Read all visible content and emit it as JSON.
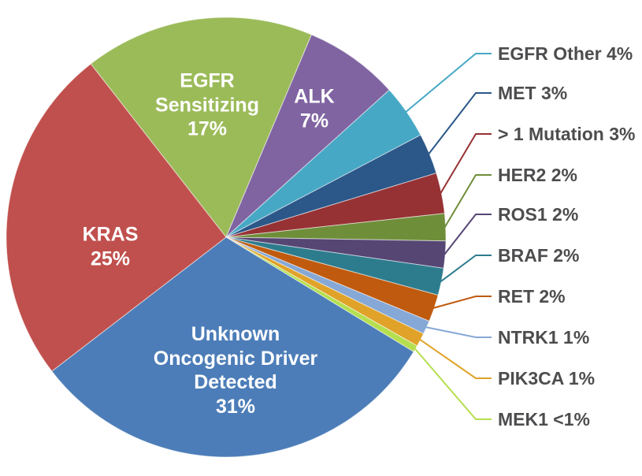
{
  "figure": {
    "background": "#ffffff",
    "callout_text_color": "#4d4d4f",
    "inner_text_color": "#ffffff"
  },
  "chart_data": {
    "type": "pie",
    "title": "",
    "units": "%",
    "direction": "clockwise",
    "start_angle_deg": -38,
    "legend_position": "right-callouts",
    "slices": [
      {
        "id": "egfr-sensitizing",
        "label": "EGFR Sensitizing",
        "value": 17,
        "value_display": "17%",
        "color": "#9bbb59",
        "inner_label": "EGFR\nSensitizing\n17%"
      },
      {
        "id": "alk",
        "label": "ALK",
        "value": 7,
        "value_display": "7%",
        "color": "#8064a2",
        "inner_label": "ALK\n7%"
      },
      {
        "id": "egfr-other",
        "label": "EGFR Other",
        "value": 4,
        "value_display": "4%",
        "color": "#47a8c5",
        "callout": "EGFR Other 4%"
      },
      {
        "id": "met",
        "label": "MET",
        "value": 3,
        "value_display": "3%",
        "color": "#2b5789",
        "callout": "MET 3%"
      },
      {
        "id": "gt1-mutation",
        "label": "> 1 Mutation",
        "value": 3,
        "value_display": "3%",
        "color": "#963234",
        "callout": "> 1 Mutation 3%"
      },
      {
        "id": "her2",
        "label": "HER2",
        "value": 2,
        "value_display": "2%",
        "color": "#6f8e3a",
        "callout": "HER2 2%"
      },
      {
        "id": "ros1",
        "label": "ROS1",
        "value": 2,
        "value_display": "2%",
        "color": "#564674",
        "callout": "ROS1 2%"
      },
      {
        "id": "braf",
        "label": "BRAF",
        "value": 2,
        "value_display": "2%",
        "color": "#2d7c8e",
        "callout": "BRAF 2%"
      },
      {
        "id": "ret",
        "label": "RET",
        "value": 2,
        "value_display": "2%",
        "color": "#bf5a0e",
        "callout": "RET 2%"
      },
      {
        "id": "ntrk1",
        "label": "NTRK1",
        "value": 1,
        "value_display": "1%",
        "color": "#86a8d6",
        "callout": "NTRK1 1%"
      },
      {
        "id": "pik3ca",
        "label": "PIK3CA",
        "value": 1,
        "value_display": "1%",
        "color": "#e0a228",
        "callout": "PIK3CA 1%"
      },
      {
        "id": "mek1",
        "label": "MEK1",
        "value": 0.5,
        "value_display": "<1%",
        "color": "#b5df4e",
        "callout": "MEK1 <1%"
      },
      {
        "id": "unknown-oncogenic-driver",
        "label": "Unknown Oncogenic Driver Detected",
        "value": 31,
        "value_display": "31%",
        "color": "#4c7db8",
        "inner_label": "Unknown\nOncogenic Driver\nDetected\n31%"
      },
      {
        "id": "kras",
        "label": "KRAS",
        "value": 25,
        "value_display": "25%",
        "color": "#c0504d",
        "inner_label": "KRAS\n25%"
      }
    ]
  }
}
